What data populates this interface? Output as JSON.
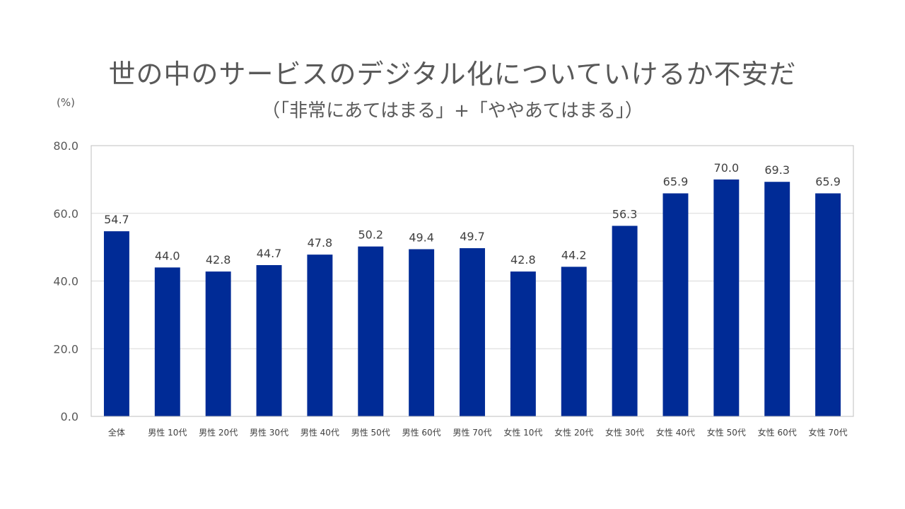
{
  "title": "世の中のサービスのデジタル化についていけるか不安だ",
  "subtitle": "（「非常にあてはまる」+「ややあてはまる」）",
  "unit_label": "(%)",
  "colors": {
    "bar": "#002B96",
    "grid": "#D9D9D9",
    "frame": "#BFBFBF"
  },
  "chart_data": {
    "type": "bar",
    "title": "世の中のサービスのデジタル化についていけるか不安だ",
    "subtitle": "（「非常にあてはまる」+「ややあてはまる」）",
    "ylabel": "(%)",
    "ylim": [
      0,
      80
    ],
    "yticks": [
      "0.0",
      "20.0",
      "40.0",
      "60.0",
      "80.0"
    ],
    "grid": true,
    "categories": [
      "全体",
      "男性 10代",
      "男性 20代",
      "男性 30代",
      "男性 40代",
      "男性 50代",
      "男性 60代",
      "男性 70代",
      "女性 10代",
      "女性 20代",
      "女性 30代",
      "女性 40代",
      "女性 50代",
      "女性 60代",
      "女性 70代"
    ],
    "values": [
      54.7,
      44.0,
      42.8,
      44.7,
      47.8,
      50.2,
      49.4,
      49.7,
      42.8,
      44.2,
      56.3,
      65.9,
      70.0,
      69.3,
      65.9
    ]
  }
}
